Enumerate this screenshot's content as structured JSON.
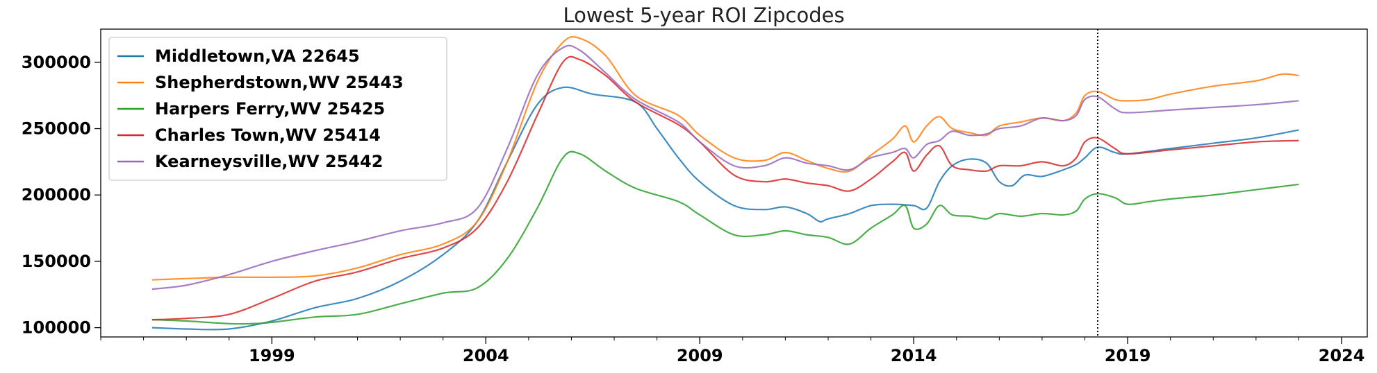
{
  "chart_data": {
    "type": "line",
    "title": "Lowest 5-year ROI Zipcodes",
    "xlabel": "",
    "ylabel": "",
    "xlim": [
      1995.0,
      2024.6
    ],
    "ylim": [
      93000,
      325000
    ],
    "xticks": [
      1999,
      2004,
      2009,
      2014,
      2019,
      2024
    ],
    "xtick_labels": [
      "1999",
      "2004",
      "2009",
      "2014",
      "2019",
      "2024"
    ],
    "yticks": [
      100000,
      150000,
      200000,
      250000,
      300000
    ],
    "ytick_labels": [
      "100000",
      "150000",
      "200000",
      "250000",
      "300000"
    ],
    "vline": {
      "x": 2018.3,
      "style": "dotted",
      "color": "#000000"
    },
    "grid": false,
    "legend_position": "top-left",
    "series": [
      {
        "name": "Middletown,VA 22645",
        "color": "#1f77b4",
        "points": [
          [
            1996.2,
            100000
          ],
          [
            1997.0,
            99000
          ],
          [
            1998.0,
            99000
          ],
          [
            1999.0,
            105000
          ],
          [
            2000.0,
            115000
          ],
          [
            2001.0,
            122000
          ],
          [
            2002.0,
            135000
          ],
          [
            2003.0,
            155000
          ],
          [
            2003.8,
            180000
          ],
          [
            2004.5,
            225000
          ],
          [
            2005.2,
            268000
          ],
          [
            2005.8,
            281000
          ],
          [
            2006.5,
            276000
          ],
          [
            2007.5,
            270000
          ],
          [
            2008.0,
            250000
          ],
          [
            2008.5,
            228000
          ],
          [
            2009.0,
            210000
          ],
          [
            2009.8,
            192000
          ],
          [
            2010.5,
            189000
          ],
          [
            2011.0,
            191000
          ],
          [
            2011.5,
            186000
          ],
          [
            2011.8,
            180000
          ],
          [
            2012.0,
            182000
          ],
          [
            2012.5,
            186000
          ],
          [
            2013.0,
            192000
          ],
          [
            2013.5,
            193000
          ],
          [
            2014.0,
            192000
          ],
          [
            2014.3,
            190000
          ],
          [
            2014.6,
            210000
          ],
          [
            2014.9,
            222000
          ],
          [
            2015.3,
            227000
          ],
          [
            2015.7,
            224000
          ],
          [
            2016.0,
            210000
          ],
          [
            2016.3,
            207000
          ],
          [
            2016.6,
            215000
          ],
          [
            2017.0,
            214000
          ],
          [
            2017.5,
            219000
          ],
          [
            2017.8,
            223000
          ],
          [
            2018.0,
            228000
          ],
          [
            2018.3,
            236000
          ],
          [
            2018.7,
            232000
          ],
          [
            2019.0,
            231000
          ],
          [
            2020.0,
            235000
          ],
          [
            2021.0,
            239000
          ],
          [
            2022.0,
            243000
          ],
          [
            2023.0,
            249000
          ]
        ]
      },
      {
        "name": "Shepherdstown,WV 25443",
        "color": "#ff7f0e",
        "points": [
          [
            1996.2,
            136000
          ],
          [
            1997.0,
            137000
          ],
          [
            1998.0,
            138000
          ],
          [
            1999.0,
            138000
          ],
          [
            2000.0,
            139000
          ],
          [
            2001.0,
            145000
          ],
          [
            2002.0,
            155000
          ],
          [
            2003.0,
            163000
          ],
          [
            2003.8,
            180000
          ],
          [
            2004.5,
            225000
          ],
          [
            2005.2,
            285000
          ],
          [
            2005.8,
            315000
          ],
          [
            2006.2,
            318000
          ],
          [
            2006.8,
            305000
          ],
          [
            2007.5,
            275000
          ],
          [
            2008.5,
            260000
          ],
          [
            2009.0,
            245000
          ],
          [
            2009.8,
            228000
          ],
          [
            2010.5,
            226000
          ],
          [
            2011.0,
            232000
          ],
          [
            2011.5,
            226000
          ],
          [
            2012.0,
            220000
          ],
          [
            2012.5,
            218000
          ],
          [
            2013.0,
            230000
          ],
          [
            2013.5,
            242000
          ],
          [
            2013.8,
            252000
          ],
          [
            2014.0,
            240000
          ],
          [
            2014.3,
            252000
          ],
          [
            2014.6,
            259000
          ],
          [
            2014.9,
            250000
          ],
          [
            2015.3,
            247000
          ],
          [
            2015.7,
            245000
          ],
          [
            2016.0,
            252000
          ],
          [
            2016.5,
            255000
          ],
          [
            2017.0,
            258000
          ],
          [
            2017.5,
            256000
          ],
          [
            2017.8,
            262000
          ],
          [
            2018.0,
            275000
          ],
          [
            2018.3,
            278000
          ],
          [
            2018.7,
            272000
          ],
          [
            2019.0,
            271000
          ],
          [
            2019.5,
            272000
          ],
          [
            2020.0,
            276000
          ],
          [
            2021.0,
            282000
          ],
          [
            2022.0,
            286000
          ],
          [
            2022.6,
            291000
          ],
          [
            2023.0,
            290000
          ]
        ]
      },
      {
        "name": "Harpers Ferry,WV 25425",
        "color": "#2ca02c",
        "points": [
          [
            1996.2,
            106000
          ],
          [
            1997.0,
            105000
          ],
          [
            1998.0,
            103000
          ],
          [
            1998.5,
            103000
          ],
          [
            1999.0,
            104000
          ],
          [
            2000.0,
            108000
          ],
          [
            2001.0,
            110000
          ],
          [
            2002.0,
            118000
          ],
          [
            2003.0,
            126000
          ],
          [
            2003.8,
            130000
          ],
          [
            2004.5,
            152000
          ],
          [
            2005.2,
            190000
          ],
          [
            2005.8,
            228000
          ],
          [
            2006.2,
            231000
          ],
          [
            2006.8,
            218000
          ],
          [
            2007.5,
            205000
          ],
          [
            2008.5,
            195000
          ],
          [
            2009.0,
            185000
          ],
          [
            2009.8,
            170000
          ],
          [
            2010.5,
            170000
          ],
          [
            2011.0,
            173000
          ],
          [
            2011.5,
            170000
          ],
          [
            2012.0,
            168000
          ],
          [
            2012.5,
            163000
          ],
          [
            2013.0,
            175000
          ],
          [
            2013.5,
            185000
          ],
          [
            2013.8,
            192000
          ],
          [
            2014.0,
            175000
          ],
          [
            2014.3,
            178000
          ],
          [
            2014.6,
            192000
          ],
          [
            2014.9,
            185000
          ],
          [
            2015.3,
            184000
          ],
          [
            2015.7,
            182000
          ],
          [
            2016.0,
            186000
          ],
          [
            2016.5,
            184000
          ],
          [
            2017.0,
            186000
          ],
          [
            2017.5,
            185000
          ],
          [
            2017.8,
            188000
          ],
          [
            2018.0,
            197000
          ],
          [
            2018.3,
            201000
          ],
          [
            2018.7,
            198000
          ],
          [
            2019.0,
            193000
          ],
          [
            2019.5,
            195000
          ],
          [
            2020.0,
            197000
          ],
          [
            2021.0,
            200000
          ],
          [
            2022.0,
            204000
          ],
          [
            2023.0,
            208000
          ]
        ]
      },
      {
        "name": "Charles Town,WV 25414",
        "color": "#d62728",
        "points": [
          [
            1996.2,
            106000
          ],
          [
            1997.0,
            107000
          ],
          [
            1998.0,
            110000
          ],
          [
            1999.0,
            122000
          ],
          [
            2000.0,
            135000
          ],
          [
            2001.0,
            142000
          ],
          [
            2002.0,
            152000
          ],
          [
            2003.0,
            160000
          ],
          [
            2003.8,
            175000
          ],
          [
            2004.5,
            210000
          ],
          [
            2005.2,
            260000
          ],
          [
            2005.8,
            300000
          ],
          [
            2006.2,
            302000
          ],
          [
            2006.8,
            290000
          ],
          [
            2007.5,
            270000
          ],
          [
            2008.5,
            253000
          ],
          [
            2009.0,
            240000
          ],
          [
            2009.8,
            215000
          ],
          [
            2010.5,
            210000
          ],
          [
            2011.0,
            212000
          ],
          [
            2011.5,
            209000
          ],
          [
            2012.0,
            207000
          ],
          [
            2012.5,
            203000
          ],
          [
            2013.0,
            212000
          ],
          [
            2013.5,
            225000
          ],
          [
            2013.8,
            232000
          ],
          [
            2014.0,
            218000
          ],
          [
            2014.3,
            230000
          ],
          [
            2014.6,
            237000
          ],
          [
            2014.9,
            222000
          ],
          [
            2015.3,
            219000
          ],
          [
            2015.7,
            218000
          ],
          [
            2016.0,
            222000
          ],
          [
            2016.5,
            222000
          ],
          [
            2017.0,
            225000
          ],
          [
            2017.5,
            222000
          ],
          [
            2017.8,
            228000
          ],
          [
            2018.0,
            240000
          ],
          [
            2018.3,
            243000
          ],
          [
            2018.7,
            235000
          ],
          [
            2019.0,
            231000
          ],
          [
            2020.0,
            234000
          ],
          [
            2021.0,
            237000
          ],
          [
            2022.0,
            240000
          ],
          [
            2023.0,
            241000
          ]
        ]
      },
      {
        "name": "Kearneysville,WV 25442",
        "color": "#9467bd",
        "points": [
          [
            1996.2,
            129000
          ],
          [
            1997.0,
            132000
          ],
          [
            1998.0,
            140000
          ],
          [
            1999.0,
            150000
          ],
          [
            2000.0,
            158000
          ],
          [
            2001.0,
            165000
          ],
          [
            2002.0,
            173000
          ],
          [
            2003.0,
            179000
          ],
          [
            2003.8,
            190000
          ],
          [
            2004.5,
            235000
          ],
          [
            2005.2,
            290000
          ],
          [
            2005.8,
            311000
          ],
          [
            2006.2,
            309000
          ],
          [
            2006.8,
            292000
          ],
          [
            2007.5,
            272000
          ],
          [
            2008.5,
            255000
          ],
          [
            2009.0,
            240000
          ],
          [
            2009.8,
            222000
          ],
          [
            2010.5,
            222000
          ],
          [
            2011.0,
            228000
          ],
          [
            2011.5,
            224000
          ],
          [
            2012.0,
            222000
          ],
          [
            2012.5,
            219000
          ],
          [
            2013.0,
            228000
          ],
          [
            2013.5,
            232000
          ],
          [
            2013.8,
            235000
          ],
          [
            2014.0,
            228000
          ],
          [
            2014.3,
            238000
          ],
          [
            2014.6,
            241000
          ],
          [
            2014.9,
            248000
          ],
          [
            2015.3,
            245000
          ],
          [
            2015.7,
            246000
          ],
          [
            2016.0,
            250000
          ],
          [
            2016.5,
            252000
          ],
          [
            2017.0,
            258000
          ],
          [
            2017.5,
            256000
          ],
          [
            2017.8,
            260000
          ],
          [
            2018.0,
            272000
          ],
          [
            2018.3,
            274000
          ],
          [
            2018.7,
            265000
          ],
          [
            2019.0,
            262000
          ],
          [
            2020.0,
            264000
          ],
          [
            2021.0,
            266000
          ],
          [
            2022.0,
            268000
          ],
          [
            2023.0,
            271000
          ]
        ]
      }
    ]
  }
}
